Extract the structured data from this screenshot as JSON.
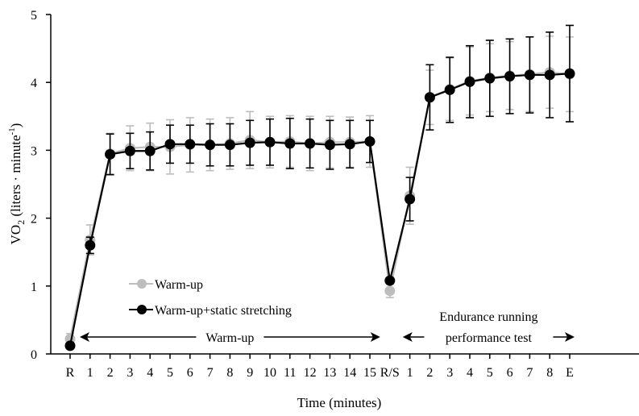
{
  "chart_data": {
    "type": "line",
    "xlabel": "Time (minutes)",
    "ylabel_main": "VO",
    "ylabel_sub": "2",
    "ylabel_rest": " (liters · minute",
    "ylabel_sup": "-1",
    "ylabel_close": ")",
    "ylim": [
      0,
      5
    ],
    "yticks": [
      "0",
      "1",
      "2",
      "3",
      "4",
      "5"
    ],
    "x_labels": [
      "R",
      "1",
      "2",
      "3",
      "4",
      "5",
      "6",
      "7",
      "8",
      "9",
      "10",
      "11",
      "12",
      "13",
      "14",
      "15",
      "R/S",
      "1",
      "2",
      "3",
      "4",
      "5",
      "6",
      "7",
      "8",
      "E"
    ],
    "grid": false,
    "legend_position": "bottom-left",
    "series": [
      {
        "name": "Warm-up",
        "color": "#bdbdbd",
        "values": [
          0.22,
          1.68,
          2.95,
          3.03,
          3.05,
          3.05,
          3.08,
          3.08,
          3.1,
          3.15,
          3.12,
          3.13,
          3.1,
          3.12,
          3.12,
          3.13,
          0.93,
          2.33,
          3.78,
          3.9,
          4.02,
          4.07,
          4.1,
          4.12,
          4.15,
          4.12
        ],
        "error": [
          0.08,
          0.22,
          0.3,
          0.33,
          0.35,
          0.4,
          0.4,
          0.38,
          0.38,
          0.42,
          0.38,
          0.38,
          0.4,
          0.38,
          0.37,
          0.38,
          0.1,
          0.42,
          0.4,
          0.46,
          0.5,
          0.5,
          0.5,
          0.55,
          0.53,
          0.55
        ]
      },
      {
        "name": "Warm-up+static stretching",
        "color": "#000000",
        "values": [
          0.12,
          1.6,
          2.94,
          2.99,
          2.99,
          3.09,
          3.09,
          3.08,
          3.08,
          3.11,
          3.12,
          3.1,
          3.1,
          3.08,
          3.09,
          3.13,
          1.08,
          2.28,
          3.78,
          3.89,
          4.01,
          4.06,
          4.09,
          4.11,
          4.11,
          4.13
        ],
        "error": [
          0.0,
          0.12,
          0.3,
          0.26,
          0.28,
          0.28,
          0.28,
          0.31,
          0.31,
          0.33,
          0.34,
          0.37,
          0.36,
          0.36,
          0.35,
          0.31,
          0.0,
          0.32,
          0.48,
          0.48,
          0.53,
          0.56,
          0.55,
          0.56,
          0.63,
          0.71
        ]
      }
    ],
    "annotations": [
      {
        "text": "Warm-up",
        "from_index": 0,
        "to_index": 16
      },
      {
        "text_line1": "Endurance running",
        "text_line2": "performance test",
        "from_index": 16,
        "to_index": 25
      }
    ]
  }
}
